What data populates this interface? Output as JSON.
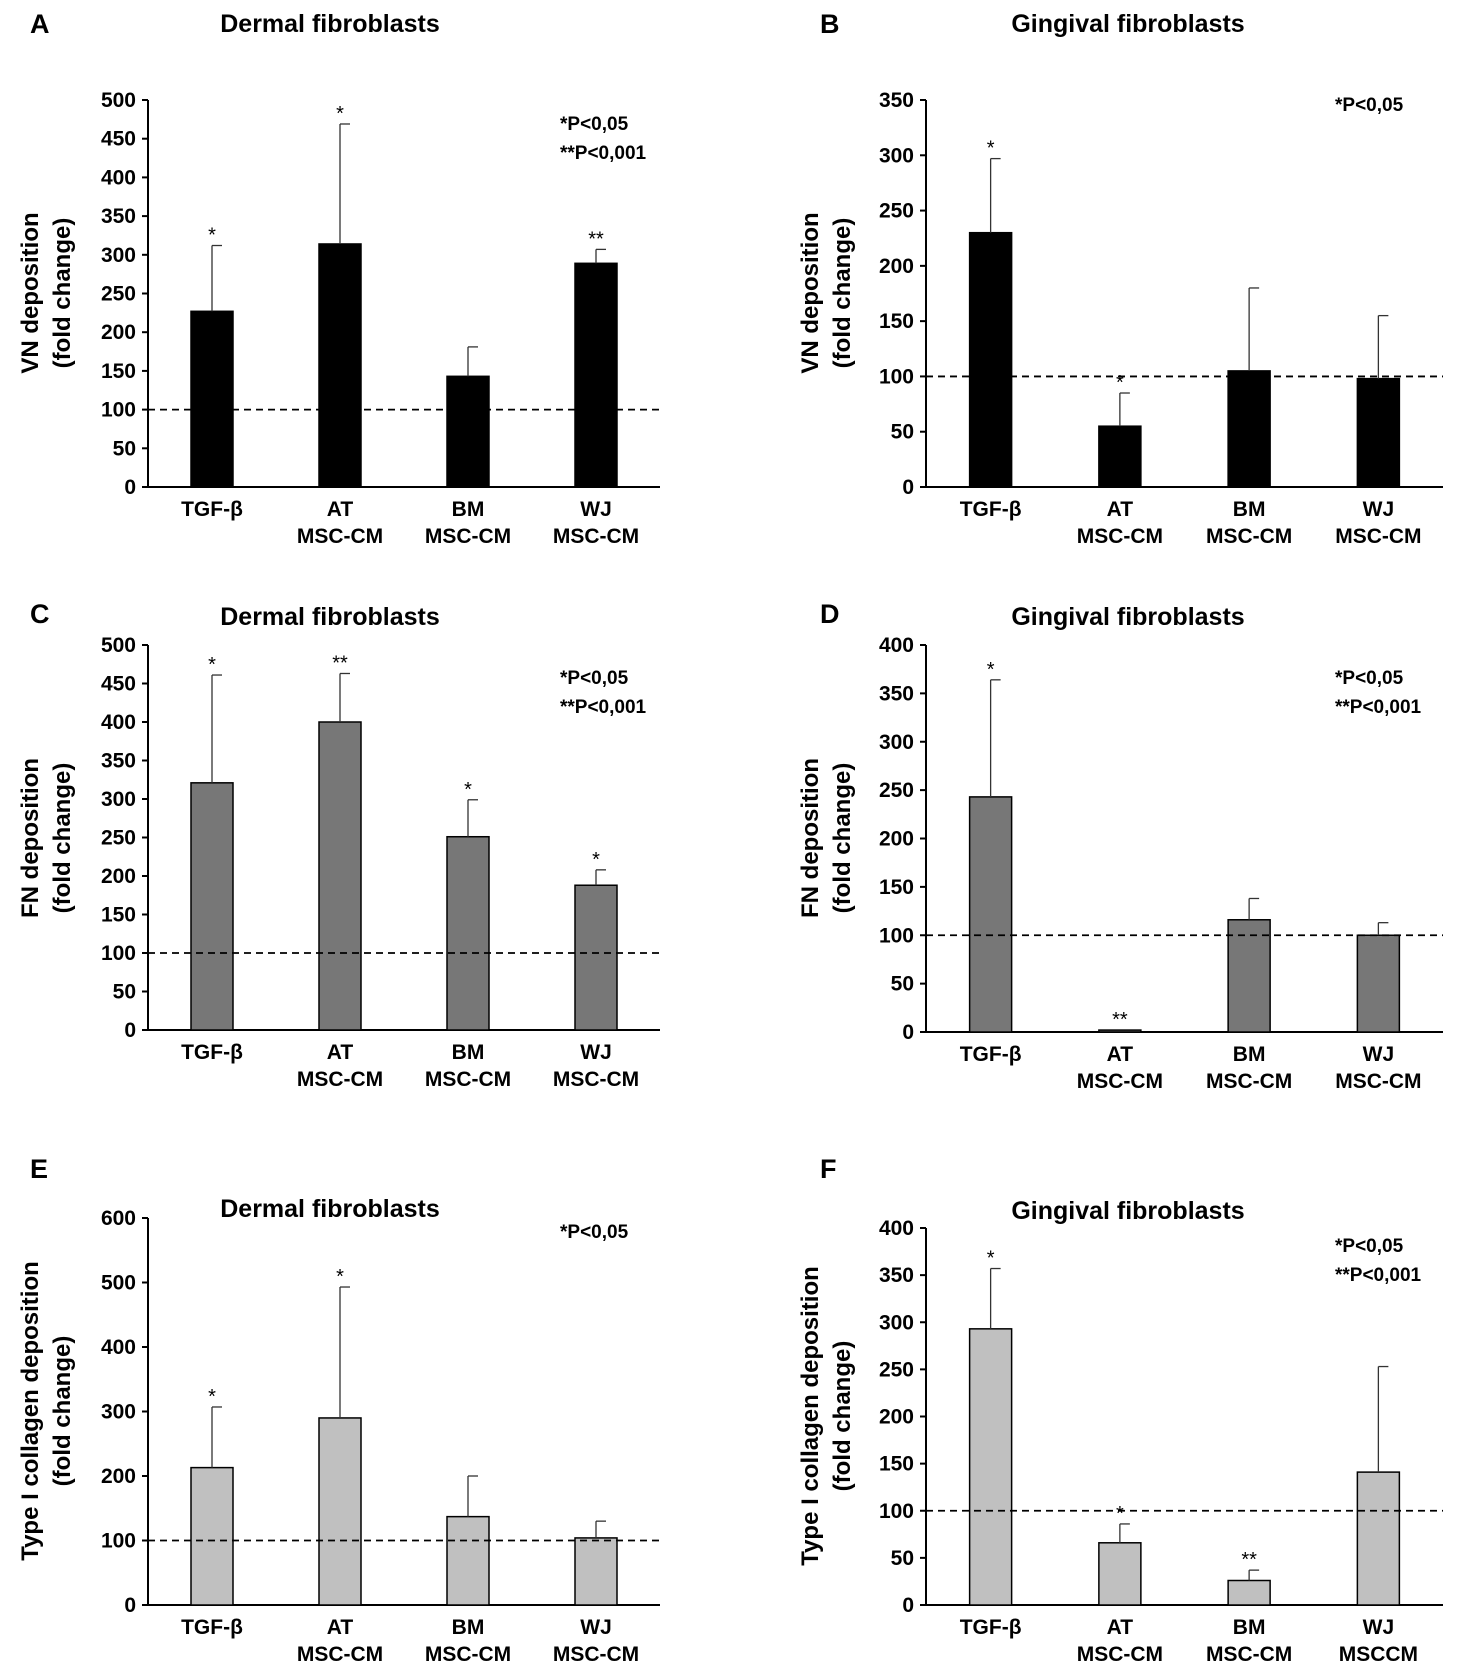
{
  "chart_data": [
    {
      "type": "bar",
      "panel": "A",
      "title": "Dermal fibroblasts",
      "ylabel": [
        "VN deposition",
        "(fold change)"
      ],
      "categories": [
        [
          "TGF-β"
        ],
        [
          "AT",
          "MSC-CM"
        ],
        [
          "BM",
          "MSC-CM"
        ],
        [
          "WJ",
          "MSC-CM"
        ]
      ],
      "values": [
        227,
        314,
        143,
        289
      ],
      "errors": [
        85,
        155,
        38,
        18
      ],
      "significance": [
        "*",
        "*",
        "",
        "**"
      ],
      "ylim": [
        0,
        500
      ],
      "ystep": 50,
      "reference_line": 100,
      "pvalue_labels": [
        "*P<0,05",
        "**P<0,001"
      ],
      "bar_color": "#000000"
    },
    {
      "type": "bar",
      "panel": "B",
      "title": "Gingival fibroblasts",
      "ylabel": [
        "VN deposition",
        "(fold change)"
      ],
      "categories": [
        [
          "TGF-β"
        ],
        [
          "AT",
          "MSC-CM"
        ],
        [
          "BM",
          "MSC-CM"
        ],
        [
          "WJ",
          "MSC-CM"
        ]
      ],
      "values": [
        230,
        55,
        105,
        98
      ],
      "errors": [
        67,
        30,
        75,
        57
      ],
      "significance": [
        "*",
        "*",
        "",
        ""
      ],
      "ylim": [
        0,
        350
      ],
      "ystep": 50,
      "reference_line": 100,
      "pvalue_labels": [
        "*P<0,05"
      ],
      "bar_color": "#000000"
    },
    {
      "type": "bar",
      "panel": "C",
      "title": "Dermal fibroblasts",
      "ylabel": [
        "FN deposition",
        "(fold change)"
      ],
      "categories": [
        [
          "TGF-β"
        ],
        [
          "AT",
          "MSC-CM"
        ],
        [
          "BM",
          "MSC-CM"
        ],
        [
          "WJ",
          "MSC-CM"
        ]
      ],
      "values": [
        321,
        400,
        251,
        188
      ],
      "errors": [
        140,
        63,
        48,
        20
      ],
      "significance": [
        "*",
        "**",
        "*",
        "*"
      ],
      "ylim": [
        0,
        500
      ],
      "ystep": 50,
      "reference_line": 100,
      "pvalue_labels": [
        "*P<0,05",
        "**P<0,001"
      ],
      "bar_color": "#777777"
    },
    {
      "type": "bar",
      "panel": "D",
      "title": "Gingival fibroblasts",
      "ylabel": [
        "FN deposition",
        "(fold change)"
      ],
      "categories": [
        [
          "TGF-β"
        ],
        [
          "AT",
          "MSC-CM"
        ],
        [
          "BM",
          "MSC-CM"
        ],
        [
          "WJ",
          "MSC-CM"
        ]
      ],
      "values": [
        243,
        2,
        116,
        100
      ],
      "errors": [
        121,
        0,
        22,
        13
      ],
      "significance": [
        "*",
        "**",
        "",
        ""
      ],
      "ylim": [
        0,
        400
      ],
      "ystep": 50,
      "reference_line": 100,
      "pvalue_labels": [
        "*P<0,05",
        "**P<0,001"
      ],
      "bar_color": "#777777"
    },
    {
      "type": "bar",
      "panel": "E",
      "title": "Dermal fibroblasts",
      "ylabel": [
        "Type I collagen deposition",
        "(fold change)"
      ],
      "categories": [
        [
          "TGF-β"
        ],
        [
          "AT",
          "MSC-CM"
        ],
        [
          "BM",
          "MSC-CM"
        ],
        [
          "WJ",
          "MSC-CM"
        ]
      ],
      "values": [
        213,
        290,
        137,
        104
      ],
      "errors": [
        94,
        203,
        63,
        26
      ],
      "significance": [
        "*",
        "*",
        "",
        ""
      ],
      "ylim": [
        0,
        600
      ],
      "ystep": 100,
      "reference_line": 100,
      "pvalue_labels": [
        "*P<0,05"
      ],
      "bar_color": "#c0c0c0"
    },
    {
      "type": "bar",
      "panel": "F",
      "title": "Gingival fibroblasts",
      "ylabel": [
        "Type I collagen deposition",
        "(fold change)"
      ],
      "categories": [
        [
          "TGF-β"
        ],
        [
          "AT",
          "MSC-CM"
        ],
        [
          "BM",
          "MSC-CM"
        ],
        [
          "WJ",
          "MSCCM"
        ]
      ],
      "values": [
        293,
        66,
        26,
        141
      ],
      "errors": [
        64,
        20,
        11,
        112
      ],
      "significance": [
        "*",
        "*",
        "**",
        ""
      ],
      "ylim": [
        0,
        400
      ],
      "ystep": 50,
      "reference_line": 100,
      "pvalue_labels": [
        "*P<0,05",
        "**P<0,001"
      ],
      "bar_color": "#c0c0c0"
    }
  ]
}
